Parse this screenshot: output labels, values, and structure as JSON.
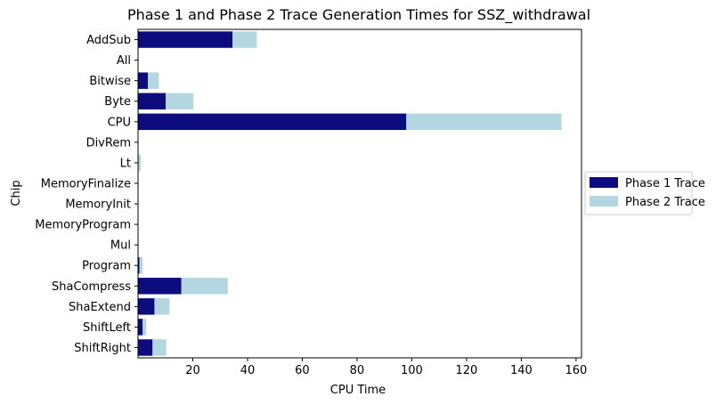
{
  "chart_data": {
    "type": "bar",
    "orientation": "horizontal",
    "stacked": true,
    "title": "Phase 1 and Phase 2 Trace Generation Times for SSZ_withdrawal",
    "xlabel": "CPU Time",
    "ylabel": "Chip",
    "xlim": [
      0,
      162
    ],
    "xticks": [
      20,
      40,
      60,
      80,
      100,
      120,
      140,
      160
    ],
    "categories": [
      "AddSub",
      "All",
      "Bitwise",
      "Byte",
      "CPU",
      "DivRem",
      "Lt",
      "MemoryFinalize",
      "MemoryInit",
      "MemoryProgram",
      "Mul",
      "Program",
      "ShaCompress",
      "ShaExtend",
      "ShiftLeft",
      "ShiftRight"
    ],
    "series": [
      {
        "name": "Phase 1 Trace",
        "color": "#0c0c7e",
        "values": [
          34.5,
          0,
          3.6,
          10.1,
          98.0,
          0,
          0.2,
          0,
          0,
          0,
          0,
          0.5,
          15.8,
          6.0,
          1.7,
          5.3
        ]
      },
      {
        "name": "Phase 2 Trace",
        "color": "#b3d6e1",
        "values": [
          8.9,
          0,
          4.0,
          10.1,
          56.7,
          0,
          0.8,
          0,
          0,
          0,
          0,
          1.2,
          17.0,
          5.5,
          1.3,
          5.0
        ]
      }
    ],
    "legend": "center-right",
    "grid": false
  }
}
